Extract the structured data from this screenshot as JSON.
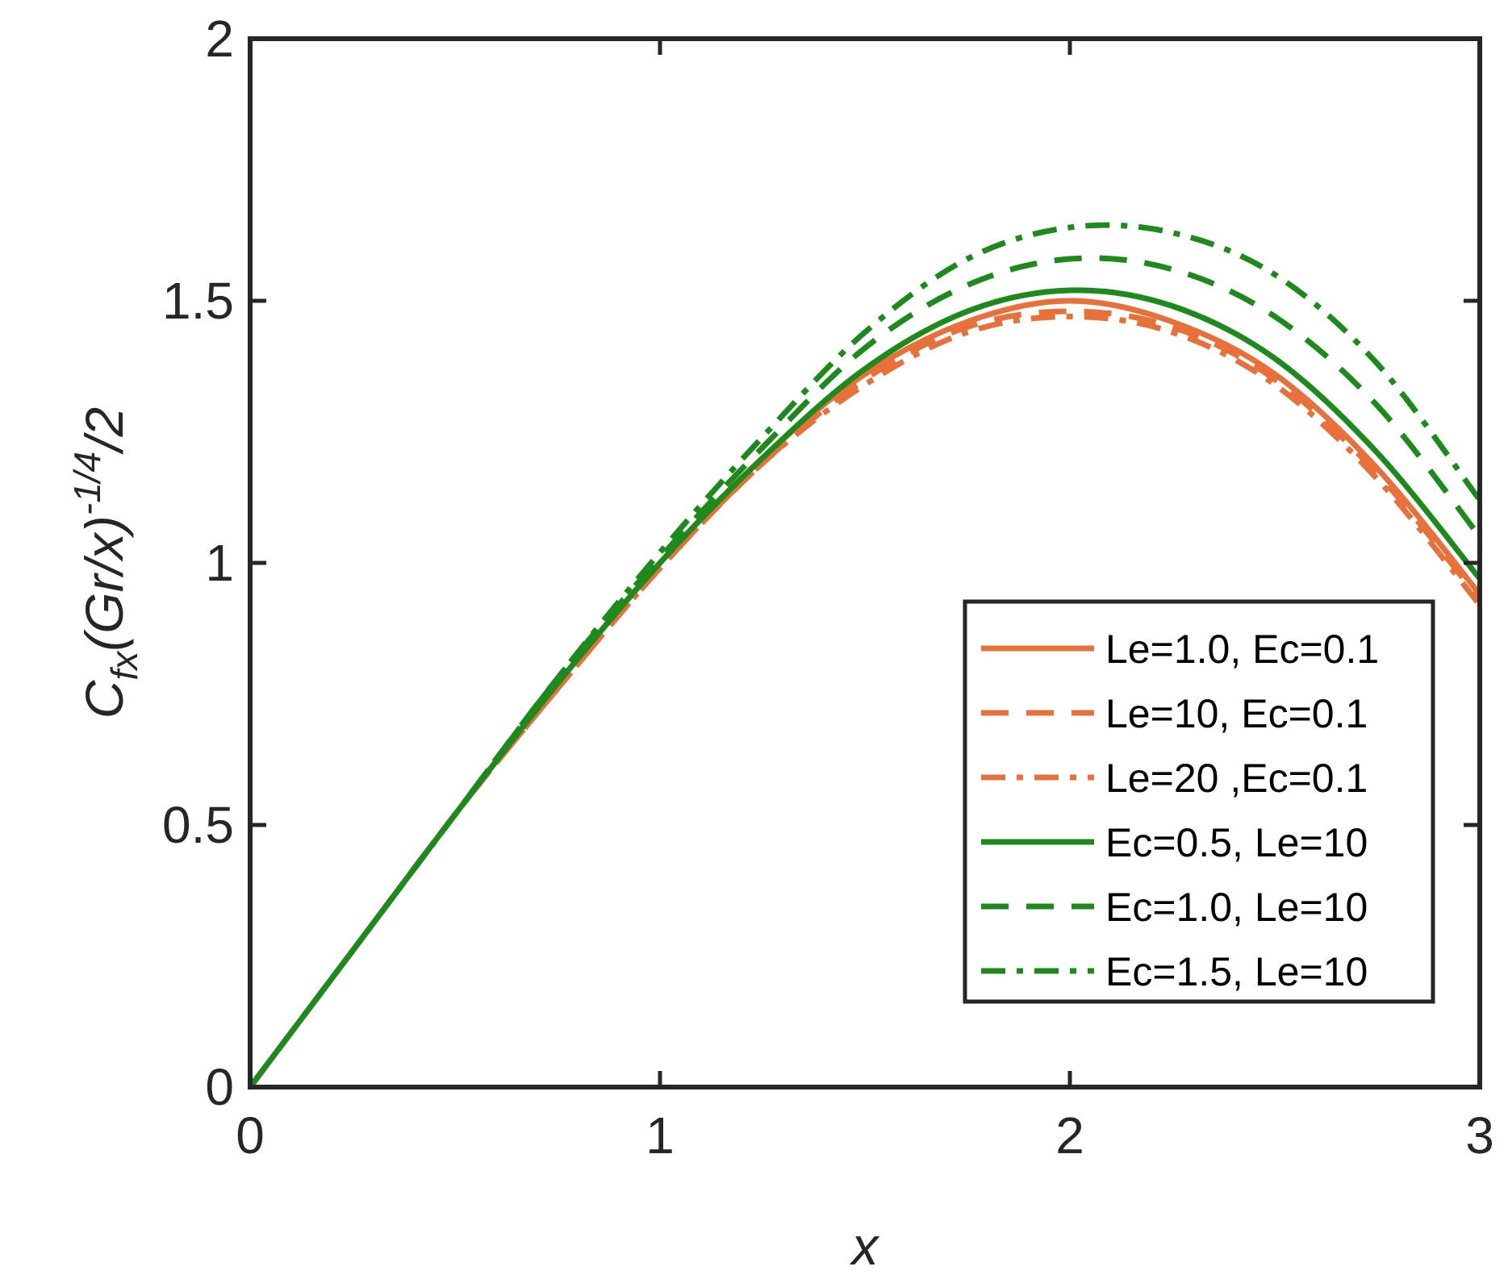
{
  "chart_data": {
    "type": "line",
    "title": "",
    "xlabel": "x",
    "ylabel": {
      "base": "C",
      "sub": "fx",
      "mid": "(Gr/x)",
      "sup": "-1/4",
      "tail": "/2"
    },
    "xlim": [
      0,
      3
    ],
    "ylim": [
      0,
      2
    ],
    "xticks": [
      "0",
      "1",
      "2",
      "3"
    ],
    "yticks": [
      "0",
      "0.5",
      "1",
      "1.5",
      "2"
    ],
    "grid": false,
    "legend_position": "lower-right",
    "x": [
      0,
      0.25,
      0.5,
      0.75,
      1.0,
      1.25,
      1.5,
      1.75,
      2.0,
      2.25,
      2.5,
      2.75,
      3.0
    ],
    "series": [
      {
        "name": "Le=1.0, Ec=0.1",
        "color": "#E8703A",
        "dash": "solid",
        "values": [
          0,
          0.26,
          0.52,
          0.77,
          1.0,
          1.2,
          1.36,
          1.46,
          1.5,
          1.46,
          1.36,
          1.18,
          0.94
        ]
      },
      {
        "name": "Le=10, Ec=0.1",
        "color": "#E8703A",
        "dash": "dashed",
        "values": [
          0,
          0.26,
          0.52,
          0.76,
          0.99,
          1.19,
          1.35,
          1.45,
          1.48,
          1.45,
          1.35,
          1.17,
          0.93
        ]
      },
      {
        "name": "Le=20 ,Ec=0.1",
        "color": "#E8703A",
        "dash": "dashdot",
        "values": [
          0,
          0.26,
          0.52,
          0.76,
          0.99,
          1.19,
          1.34,
          1.44,
          1.47,
          1.44,
          1.34,
          1.16,
          0.92
        ]
      },
      {
        "name": "Ec=0.5, Le=10",
        "color": "#1E8A1E",
        "dash": "solid",
        "values": [
          0,
          0.26,
          0.52,
          0.77,
          1.0,
          1.2,
          1.37,
          1.48,
          1.52,
          1.49,
          1.39,
          1.21,
          0.97
        ]
      },
      {
        "name": "Ec=1.0, Le=10",
        "color": "#1E8A1E",
        "dash": "dashed",
        "values": [
          0,
          0.26,
          0.52,
          0.78,
          1.01,
          1.22,
          1.41,
          1.53,
          1.58,
          1.56,
          1.47,
          1.3,
          1.05
        ]
      },
      {
        "name": "Ec=1.5, Le=10",
        "color": "#1E8A1E",
        "dash": "dashdot",
        "values": [
          0,
          0.26,
          0.52,
          0.78,
          1.02,
          1.24,
          1.44,
          1.58,
          1.64,
          1.63,
          1.55,
          1.38,
          1.12
        ]
      }
    ]
  }
}
